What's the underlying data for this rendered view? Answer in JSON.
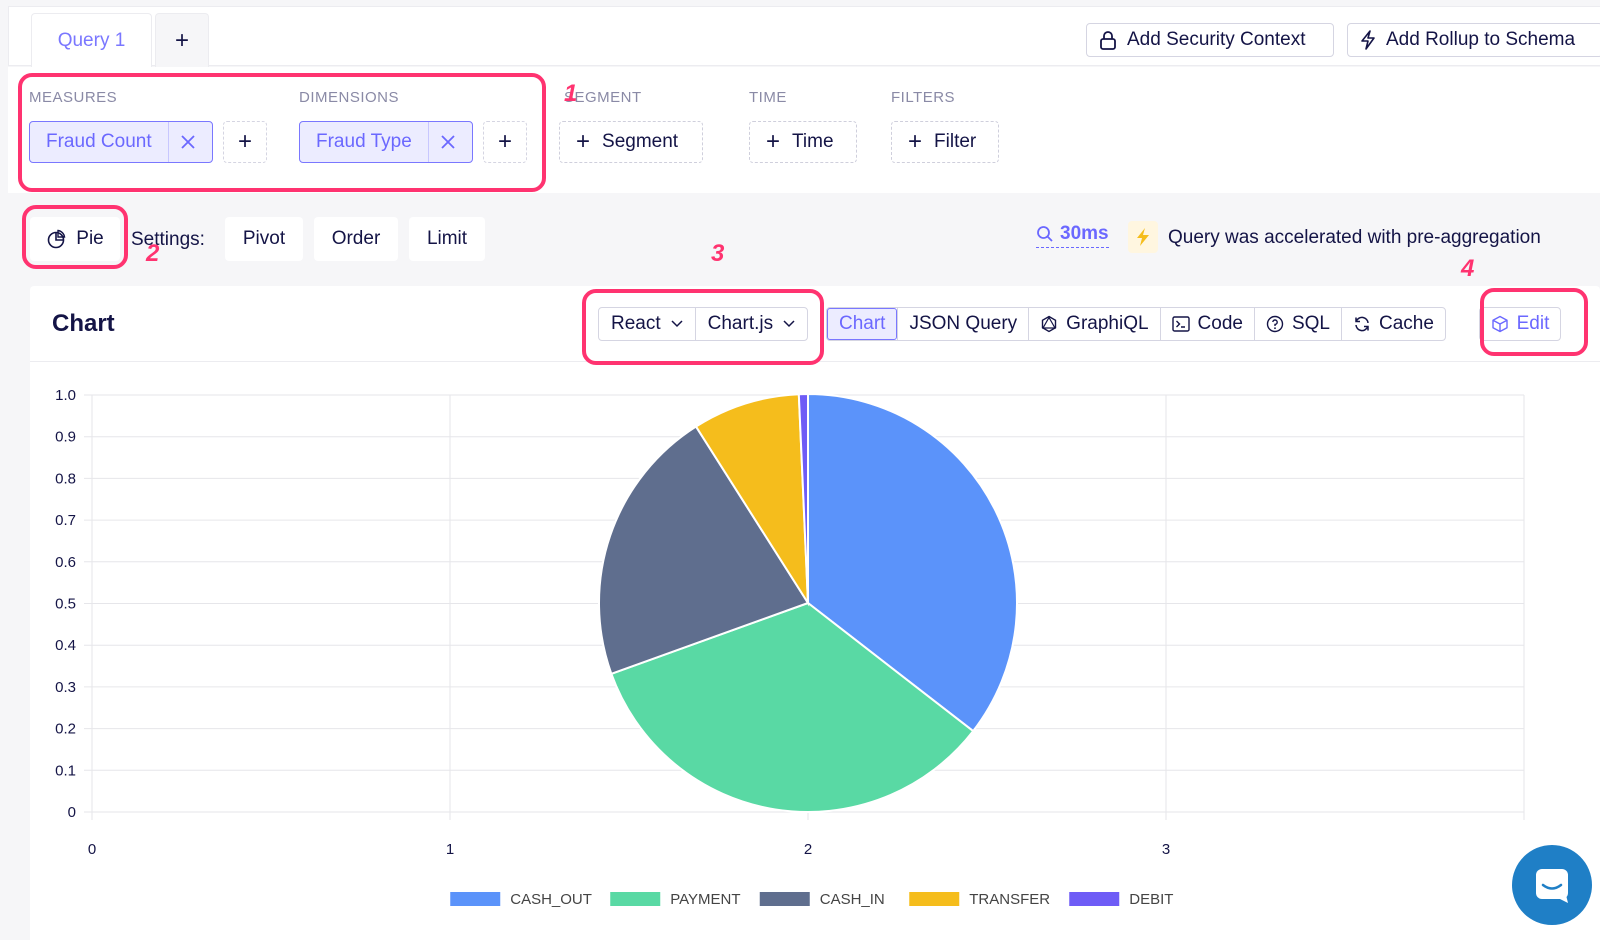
{
  "tabs": {
    "query_label": "Query 1",
    "add_label": "+"
  },
  "top_actions": {
    "security_label": "Add Security Context",
    "rollup_label": "Add Rollup to Schema"
  },
  "builder": {
    "measures_label": "MEASURES",
    "measure_pill": "Fraud Count",
    "dimensions_label": "DIMENSIONS",
    "dimension_pill": "Fraud Type",
    "segment_label": "SEGMENT",
    "segment_button": "Segment",
    "time_label": "TIME",
    "time_button": "Time",
    "filters_label": "FILTERS",
    "filter_button": "Filter"
  },
  "annotations": {
    "a1": "1",
    "a2": "2",
    "a3": "3",
    "a4": "4"
  },
  "settings": {
    "chart_type": "Pie",
    "settings_label": "Settings:",
    "pivot": "Pivot",
    "order": "Order",
    "limit": "Limit",
    "timing": "30ms",
    "accel_text": "Query was accelerated with pre-aggregation"
  },
  "card": {
    "title": "Chart",
    "framework": "React",
    "library": "Chart.js",
    "view_tabs": [
      "Chart",
      "JSON Query",
      "GraphiQL",
      "Code",
      "SQL",
      "Cache"
    ],
    "edit_label": "Edit"
  },
  "colors": {
    "accent": "#7a77ff",
    "highlight": "#ff3370",
    "intercom": "#1f7fc6"
  },
  "chart_data": {
    "type": "pie",
    "series": [
      {
        "name": "CASH_OUT",
        "value": 35.5,
        "color": "#5b93fa"
      },
      {
        "name": "PAYMENT",
        "value": 34.0,
        "color": "#59d9a4"
      },
      {
        "name": "CASH_IN",
        "value": 21.5,
        "color": "#5f6e8e"
      },
      {
        "name": "TRANSFER",
        "value": 8.3,
        "color": "#f5bd1c"
      },
      {
        "name": "DEBIT",
        "value": 0.7,
        "color": "#6e5cf6"
      }
    ],
    "y_ticks": [
      "1.0",
      "0.9",
      "0.8",
      "0.7",
      "0.6",
      "0.5",
      "0.4",
      "0.3",
      "0.2",
      "0.1",
      "0"
    ],
    "x_ticks": [
      "0",
      "1",
      "2",
      "3"
    ],
    "ylim": [
      0,
      1
    ],
    "xlim": [
      0,
      4
    ],
    "grid": true,
    "legend_position": "bottom"
  }
}
